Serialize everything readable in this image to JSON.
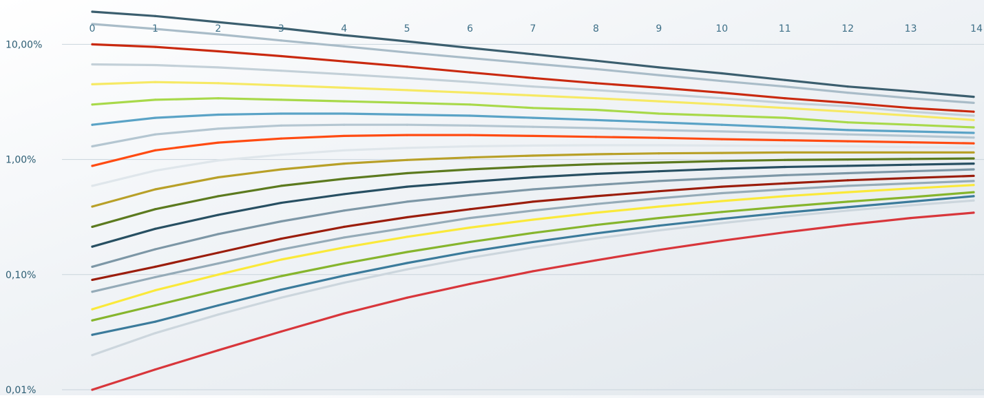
{
  "chart_data": {
    "type": "line",
    "title": "",
    "xlabel": "",
    "ylabel": "",
    "x": [
      0,
      1,
      2,
      3,
      4,
      5,
      6,
      7,
      8,
      9,
      10,
      11,
      12,
      13,
      14
    ],
    "x_tick_labels": [
      "0",
      "1",
      "2",
      "3",
      "4",
      "5",
      "6",
      "7",
      "8",
      "9",
      "10",
      "11",
      "12",
      "13",
      "14"
    ],
    "x_axis_position": "top",
    "xlim": [
      0,
      14
    ],
    "y_scale": "log",
    "ylim": [
      0.01,
      19.2
    ],
    "y_ticks": [
      0.01,
      0.1,
      1,
      10
    ],
    "y_tick_labels": [
      "0,01%",
      "0,10%",
      "1,00%",
      "10,00%"
    ],
    "grid": {
      "horizontal": true,
      "vertical": false,
      "color": "#c9d4dc"
    },
    "tick_label_colors": {
      "x": "#3d6f87",
      "y": "#2c5d73"
    },
    "legend": "none",
    "series": [
      {
        "color": "#3b5e6e",
        "values": [
          19.2,
          17.6,
          15.6,
          13.8,
          12.0,
          10.6,
          9.3,
          8.2,
          7.2,
          6.3,
          5.6,
          4.9,
          4.3,
          3.9,
          3.5
        ]
      },
      {
        "color": "#a9bcc8",
        "values": [
          15.0,
          13.6,
          12.2,
          10.8,
          9.6,
          8.5,
          7.6,
          6.8,
          6.1,
          5.4,
          4.8,
          4.3,
          3.8,
          3.4,
          3.1
        ]
      },
      {
        "color": "#c9290f",
        "values": [
          10.0,
          9.5,
          8.7,
          7.9,
          7.1,
          6.4,
          5.7,
          5.1,
          4.6,
          4.2,
          3.8,
          3.4,
          3.1,
          2.8,
          2.6
        ]
      },
      {
        "color": "#c3d0d8",
        "values": [
          6.7,
          6.6,
          6.3,
          5.9,
          5.5,
          5.1,
          4.7,
          4.3,
          4.0,
          3.7,
          3.4,
          3.1,
          2.9,
          2.6,
          2.4
        ]
      },
      {
        "color": "#f6e964",
        "values": [
          4.5,
          4.7,
          4.6,
          4.4,
          4.2,
          4.0,
          3.8,
          3.6,
          3.4,
          3.2,
          3.0,
          2.8,
          2.6,
          2.4,
          2.2
        ]
      },
      {
        "color": "#a8d94a",
        "values": [
          3.0,
          3.3,
          3.4,
          3.3,
          3.2,
          3.1,
          3.0,
          2.8,
          2.7,
          2.5,
          2.4,
          2.3,
          2.1,
          2.0,
          1.9
        ]
      },
      {
        "color": "#5aa3c6",
        "values": [
          2.0,
          2.3,
          2.45,
          2.5,
          2.5,
          2.45,
          2.4,
          2.3,
          2.2,
          2.1,
          2.0,
          1.9,
          1.8,
          1.75,
          1.7
        ]
      },
      {
        "color": "#b4c6d1",
        "values": [
          1.3,
          1.65,
          1.85,
          1.97,
          2.0,
          2.0,
          1.97,
          1.92,
          1.87,
          1.8,
          1.75,
          1.7,
          1.65,
          1.6,
          1.55
        ]
      },
      {
        "color": "#ff4b12",
        "values": [
          0.88,
          1.2,
          1.4,
          1.52,
          1.6,
          1.63,
          1.63,
          1.6,
          1.57,
          1.54,
          1.5,
          1.47,
          1.44,
          1.41,
          1.38
        ]
      },
      {
        "color": "#dfe6eb",
        "values": [
          0.59,
          0.8,
          0.98,
          1.1,
          1.2,
          1.26,
          1.3,
          1.32,
          1.33,
          1.33,
          1.32,
          1.31,
          1.3,
          1.28,
          1.27
        ]
      },
      {
        "color": "#b8a028",
        "values": [
          0.39,
          0.55,
          0.7,
          0.82,
          0.92,
          0.99,
          1.04,
          1.08,
          1.11,
          1.13,
          1.14,
          1.15,
          1.15,
          1.15,
          1.15
        ]
      },
      {
        "color": "#5c7a1f",
        "values": [
          0.26,
          0.37,
          0.48,
          0.59,
          0.68,
          0.76,
          0.82,
          0.87,
          0.91,
          0.94,
          0.97,
          0.99,
          1.0,
          1.01,
          1.02
        ]
      },
      {
        "color": "#274f62",
        "values": [
          0.175,
          0.25,
          0.33,
          0.42,
          0.5,
          0.58,
          0.64,
          0.7,
          0.75,
          0.79,
          0.83,
          0.86,
          0.88,
          0.9,
          0.92
        ]
      },
      {
        "color": "#7d97a6",
        "values": [
          0.117,
          0.166,
          0.225,
          0.29,
          0.36,
          0.43,
          0.49,
          0.55,
          0.6,
          0.65,
          0.69,
          0.73,
          0.76,
          0.79,
          0.82
        ]
      },
      {
        "color": "#9b1d0c",
        "values": [
          0.09,
          0.117,
          0.155,
          0.205,
          0.26,
          0.315,
          0.37,
          0.43,
          0.48,
          0.53,
          0.58,
          0.62,
          0.66,
          0.69,
          0.72
        ]
      },
      {
        "color": "#95abb8",
        "values": [
          0.071,
          0.095,
          0.125,
          0.165,
          0.21,
          0.255,
          0.31,
          0.36,
          0.41,
          0.46,
          0.51,
          0.55,
          0.59,
          0.62,
          0.65
        ]
      },
      {
        "color": "#fae93a",
        "values": [
          0.05,
          0.073,
          0.1,
          0.135,
          0.172,
          0.213,
          0.256,
          0.3,
          0.345,
          0.39,
          0.435,
          0.48,
          0.52,
          0.56,
          0.6
        ]
      },
      {
        "color": "#86b52d",
        "values": [
          0.04,
          0.054,
          0.073,
          0.097,
          0.125,
          0.157,
          0.192,
          0.23,
          0.27,
          0.31,
          0.35,
          0.39,
          0.43,
          0.47,
          0.52
        ]
      },
      {
        "color": "#3b7b9b",
        "values": [
          0.03,
          0.039,
          0.054,
          0.074,
          0.098,
          0.126,
          0.158,
          0.192,
          0.228,
          0.266,
          0.305,
          0.345,
          0.385,
          0.43,
          0.48
        ]
      },
      {
        "color": "#ccd6dd",
        "values": [
          0.02,
          0.031,
          0.045,
          0.063,
          0.085,
          0.111,
          0.14,
          0.172,
          0.206,
          0.242,
          0.28,
          0.32,
          0.36,
          0.4,
          0.44
        ]
      },
      {
        "color": "#d8363b",
        "values": [
          0.01,
          0.015,
          0.022,
          0.032,
          0.046,
          0.063,
          0.083,
          0.107,
          0.133,
          0.164,
          0.197,
          0.233,
          0.271,
          0.31,
          0.345
        ]
      }
    ]
  }
}
